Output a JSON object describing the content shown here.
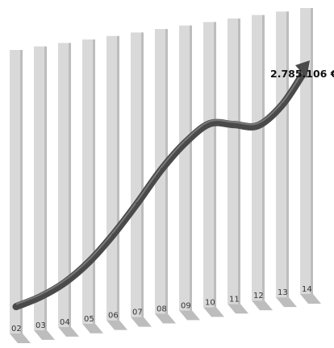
{
  "chart_data": {
    "type": "line",
    "title": "",
    "xlabel": "",
    "ylabel": "",
    "categories": [
      "02",
      "03",
      "04",
      "05",
      "06",
      "07",
      "08",
      "09",
      "10",
      "11",
      "12",
      "13",
      "14"
    ],
    "series": [
      {
        "values": [
          0.02,
          0.05,
          0.1,
          0.18,
          0.29,
          0.42,
          0.56,
          0.67,
          0.74,
          0.72,
          0.7,
          0.78,
          0.93
        ]
      }
    ],
    "annotation": {
      "text": "2.785.106 €",
      "at_category": "14"
    },
    "style": {
      "bar_color": "#d9d9d9",
      "bar_shade": "#bdbdbd",
      "ribbon_color": "#4a4a4a",
      "ribbon_top": "#7a7a7a",
      "grid": false,
      "legend": "none"
    }
  }
}
